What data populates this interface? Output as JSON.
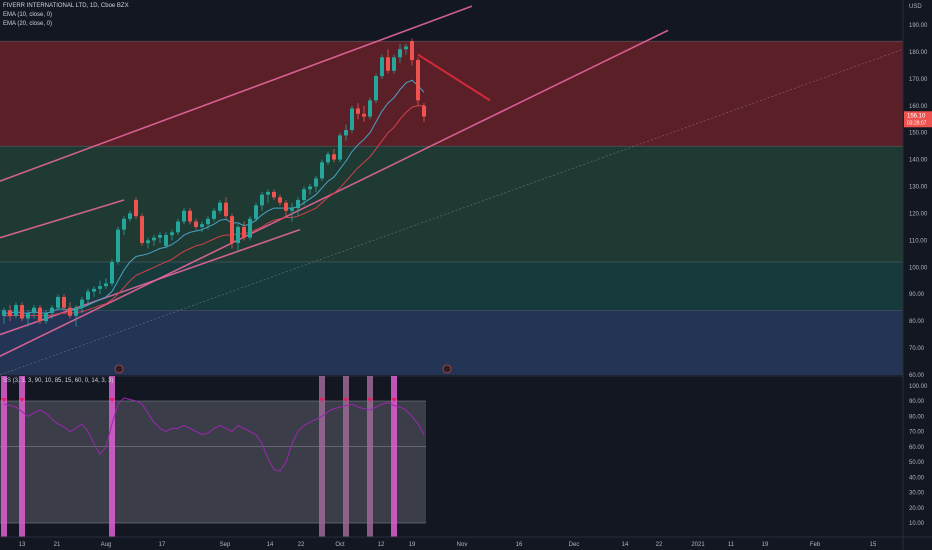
{
  "header": {
    "symbol": "FIVERR INTERNATIONAL LTD, 1D, Cboe BZX",
    "ema10": "EMA (10, close, 0)",
    "ema20": "EMA (20, close, 0)"
  },
  "oscillator": {
    "label": "SS (3, 3, 3, 90, 10, 85, 15, 60, 0, 14, 3, 3)"
  },
  "axis": {
    "currency": "USD",
    "price_label": "156.10",
    "countdown_label": "03:28:07"
  },
  "colors": {
    "background": "#131722",
    "up": "#26a69a",
    "down": "#ef5350",
    "channel": "#e3669b",
    "ema10": "#4aa3c6",
    "ema20": "#d2404a",
    "marker": "#e05fd3"
  },
  "chart_data": [
    {
      "type": "candlestick",
      "title": "FIVERR INTERNATIONAL LTD, 1D, Cboe BZX",
      "y_unit": "USD",
      "ylim": [
        60,
        195
      ],
      "y_ticks": [
        60,
        70,
        80,
        90,
        100,
        110,
        120,
        130,
        140,
        150,
        160,
        170,
        180,
        190
      ],
      "x_ticks": [
        "13",
        "21",
        "Aug",
        "17",
        "Sep",
        "14",
        "22",
        "Oct",
        "12",
        "19",
        "Nov",
        "16",
        "Dec",
        "14",
        "22",
        "2021",
        "11",
        "19",
        "Feb",
        "15"
      ],
      "zones": [
        {
          "from": 145,
          "to": 184,
          "color": "#5b1f27"
        },
        {
          "from": 102,
          "to": 145,
          "color": "#1f3a33"
        },
        {
          "from": 84,
          "to": 102,
          "color": "#173a3c"
        },
        {
          "from": 60,
          "to": 84,
          "color": "#233454"
        }
      ],
      "candles": [
        {
          "o": 82,
          "h": 85,
          "l": 79,
          "c": 84
        },
        {
          "o": 84,
          "h": 86,
          "l": 80,
          "c": 82
        },
        {
          "o": 82,
          "h": 87,
          "l": 81,
          "c": 86
        },
        {
          "o": 86,
          "h": 87,
          "l": 80,
          "c": 81
        },
        {
          "o": 81,
          "h": 84,
          "l": 78,
          "c": 83
        },
        {
          "o": 83,
          "h": 86,
          "l": 81,
          "c": 85
        },
        {
          "o": 85,
          "h": 86,
          "l": 79,
          "c": 80
        },
        {
          "o": 80,
          "h": 84,
          "l": 79,
          "c": 83
        },
        {
          "o": 83,
          "h": 86,
          "l": 81,
          "c": 85
        },
        {
          "o": 85,
          "h": 90,
          "l": 84,
          "c": 89
        },
        {
          "o": 89,
          "h": 90,
          "l": 84,
          "c": 85
        },
        {
          "o": 85,
          "h": 87,
          "l": 81,
          "c": 82
        },
        {
          "o": 82,
          "h": 86,
          "l": 78,
          "c": 85
        },
        {
          "o": 85,
          "h": 89,
          "l": 83,
          "c": 88
        },
        {
          "o": 88,
          "h": 92,
          "l": 86,
          "c": 91
        },
        {
          "o": 91,
          "h": 93,
          "l": 89,
          "c": 92
        },
        {
          "o": 92,
          "h": 95,
          "l": 90,
          "c": 93
        },
        {
          "o": 93,
          "h": 96,
          "l": 92,
          "c": 94
        },
        {
          "o": 94,
          "h": 103,
          "l": 93,
          "c": 102
        },
        {
          "o": 102,
          "h": 115,
          "l": 101,
          "c": 114
        },
        {
          "o": 114,
          "h": 119,
          "l": 112,
          "c": 118
        },
        {
          "o": 118,
          "h": 121,
          "l": 117,
          "c": 120
        },
        {
          "o": 125,
          "h": 126,
          "l": 118,
          "c": 119
        },
        {
          "o": 119,
          "h": 120,
          "l": 108,
          "c": 109
        },
        {
          "o": 109,
          "h": 111,
          "l": 107,
          "c": 110
        },
        {
          "o": 110,
          "h": 112,
          "l": 108,
          "c": 111
        },
        {
          "o": 111,
          "h": 113,
          "l": 109,
          "c": 112
        },
        {
          "o": 108,
          "h": 113,
          "l": 107,
          "c": 112
        },
        {
          "o": 112,
          "h": 114,
          "l": 110,
          "c": 113
        },
        {
          "o": 113,
          "h": 118,
          "l": 112,
          "c": 117
        },
        {
          "o": 117,
          "h": 122,
          "l": 116,
          "c": 121
        },
        {
          "o": 121,
          "h": 122,
          "l": 116,
          "c": 117
        },
        {
          "o": 117,
          "h": 118,
          "l": 114,
          "c": 115
        },
        {
          "o": 115,
          "h": 117,
          "l": 113,
          "c": 116
        },
        {
          "o": 116,
          "h": 119,
          "l": 114,
          "c": 118
        },
        {
          "o": 118,
          "h": 122,
          "l": 117,
          "c": 121
        },
        {
          "o": 121,
          "h": 125,
          "l": 120,
          "c": 124
        },
        {
          "o": 124,
          "h": 126,
          "l": 118,
          "c": 119
        },
        {
          "o": 119,
          "h": 120,
          "l": 107,
          "c": 109
        },
        {
          "o": 109,
          "h": 116,
          "l": 106,
          "c": 115
        },
        {
          "o": 115,
          "h": 117,
          "l": 110,
          "c": 111
        },
        {
          "o": 111,
          "h": 119,
          "l": 110,
          "c": 118
        },
        {
          "o": 118,
          "h": 124,
          "l": 117,
          "c": 123
        },
        {
          "o": 123,
          "h": 128,
          "l": 121,
          "c": 127
        },
        {
          "o": 127,
          "h": 129,
          "l": 124,
          "c": 128
        },
        {
          "o": 128,
          "h": 129,
          "l": 125,
          "c": 126
        },
        {
          "o": 126,
          "h": 127,
          "l": 123,
          "c": 124
        },
        {
          "o": 124,
          "h": 125,
          "l": 119,
          "c": 121
        },
        {
          "o": 121,
          "h": 124,
          "l": 117,
          "c": 122
        },
        {
          "o": 122,
          "h": 126,
          "l": 119,
          "c": 125
        },
        {
          "o": 125,
          "h": 130,
          "l": 123,
          "c": 129
        },
        {
          "o": 129,
          "h": 131,
          "l": 127,
          "c": 130
        },
        {
          "o": 130,
          "h": 134,
          "l": 128,
          "c": 133
        },
        {
          "o": 133,
          "h": 140,
          "l": 132,
          "c": 139
        },
        {
          "o": 139,
          "h": 143,
          "l": 138,
          "c": 142
        },
        {
          "o": 142,
          "h": 144,
          "l": 139,
          "c": 140
        },
        {
          "o": 140,
          "h": 150,
          "l": 139,
          "c": 149
        },
        {
          "o": 149,
          "h": 153,
          "l": 147,
          "c": 151
        },
        {
          "o": 151,
          "h": 160,
          "l": 150,
          "c": 159
        },
        {
          "o": 159,
          "h": 161,
          "l": 155,
          "c": 157
        },
        {
          "o": 157,
          "h": 160,
          "l": 154,
          "c": 156
        },
        {
          "o": 156,
          "h": 163,
          "l": 155,
          "c": 162
        },
        {
          "o": 162,
          "h": 172,
          "l": 161,
          "c": 171
        },
        {
          "o": 171,
          "h": 179,
          "l": 170,
          "c": 178
        },
        {
          "o": 178,
          "h": 181,
          "l": 172,
          "c": 173
        },
        {
          "o": 173,
          "h": 179,
          "l": 172,
          "c": 178
        },
        {
          "o": 178,
          "h": 183,
          "l": 176,
          "c": 181
        },
        {
          "o": 181,
          "h": 183,
          "l": 179,
          "c": 182
        },
        {
          "o": 184,
          "h": 185,
          "l": 175,
          "c": 177
        },
        {
          "o": 177,
          "h": 178,
          "l": 160,
          "c": 162
        },
        {
          "o": 160,
          "h": 161,
          "l": 154,
          "c": 156
        }
      ],
      "ema10": [
        83,
        83,
        83.5,
        83,
        83,
        83.5,
        83,
        83,
        83.5,
        84.5,
        84.5,
        84,
        84.2,
        85,
        86,
        87,
        88,
        89,
        91,
        95,
        99,
        102,
        104,
        104.5,
        105,
        106,
        107,
        107.5,
        108.5,
        110,
        112,
        113,
        113.5,
        114,
        115,
        116,
        117.5,
        117.8,
        116.5,
        116.5,
        115.5,
        116,
        117.5,
        119.5,
        121,
        122,
        122,
        122,
        122,
        122.5,
        124,
        125.5,
        127,
        129.5,
        132,
        133.5,
        136.5,
        139.5,
        143,
        145.5,
        147.5,
        150,
        154,
        158,
        161,
        163,
        166,
        168.5,
        169.5,
        167.5,
        165
      ],
      "ema20": [
        82,
        82,
        82.2,
        82,
        82,
        82.2,
        82,
        82,
        82.2,
        82.8,
        83,
        83,
        83.2,
        83.5,
        84.2,
        85,
        85.8,
        86.5,
        88,
        90,
        92.5,
        95,
        97,
        98,
        99,
        100,
        101,
        102,
        103,
        104.5,
        106,
        107,
        108,
        108.5,
        109.5,
        110.5,
        111.5,
        112,
        112,
        112.5,
        112.5,
        113,
        114,
        115,
        116.5,
        117.5,
        118,
        118.5,
        118.5,
        119,
        120,
        121,
        122,
        124,
        126,
        127.5,
        129.5,
        132,
        134.5,
        137,
        139,
        141,
        144,
        147,
        150,
        152,
        155,
        157.5,
        159.5,
        160,
        160
      ]
    },
    {
      "type": "line",
      "title": "SS (3, 3, 3, 90, 10, 85, 15, 60, 0, 14, 3, 3)",
      "ylim": [
        5,
        100
      ],
      "y_ticks": [
        10,
        20,
        30,
        40,
        50,
        60,
        70,
        80,
        90,
        100
      ],
      "reference_lines": [
        90,
        60,
        10
      ],
      "values": [
        88,
        87,
        86,
        83,
        80,
        82,
        84,
        82,
        78,
        75,
        73,
        70,
        72,
        75,
        70,
        62,
        55,
        60,
        75,
        88,
        92,
        91,
        90,
        88,
        82,
        76,
        72,
        70,
        72,
        72,
        74,
        72,
        70,
        68,
        69,
        72,
        74,
        72,
        70,
        74,
        72,
        70,
        68,
        62,
        52,
        45,
        44,
        50,
        62,
        70,
        74,
        76,
        78,
        80,
        83,
        85,
        86,
        87,
        88,
        86,
        85,
        84,
        86,
        88,
        89,
        87,
        86,
        84,
        80,
        75,
        68
      ],
      "markers": [
        {
          "index": 0,
          "color": "#e05fd3"
        },
        {
          "index": 3,
          "color": "#e05fd3"
        },
        {
          "index": 18,
          "color": "#e05fd3"
        },
        {
          "index": 53,
          "color": "#9c6a95"
        },
        {
          "index": 57,
          "color": "#9c6a95"
        },
        {
          "index": 61,
          "color": "#9c6a95"
        },
        {
          "index": 65,
          "color": "#e05fd3"
        }
      ]
    }
  ]
}
